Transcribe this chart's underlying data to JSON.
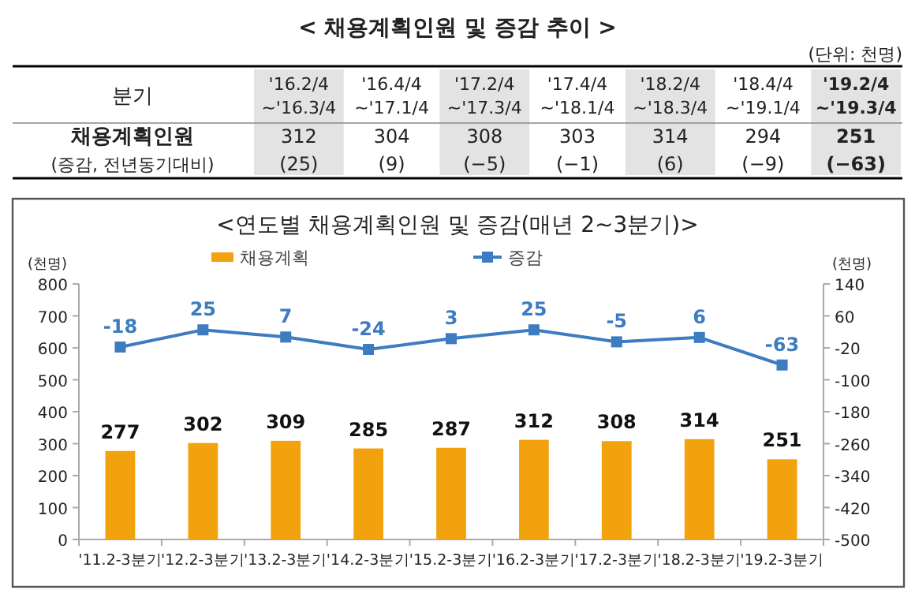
{
  "chart_data": [
    {
      "type": "other",
      "title": "< 채용계획인원 및 증감 추이 >",
      "annotations": [
        "(단위: 천명)"
      ],
      "xlabel": "분기",
      "data_labels": true,
      "categories": [
        "'16.2/4 ~'16.3/4",
        "'16.4/4 ~'17.1/4",
        "'17.2/4 ~'17.3/4",
        "'17.4/4 ~'18.1/4",
        "'18.2/4 ~'18.3/4",
        "'18.4/4 ~'19.1/4",
        "'19.2/4 ~'19.3/4"
      ],
      "series": [
        {
          "name": "채용계획인원",
          "values": [
            312,
            304,
            308,
            303,
            314,
            294,
            251
          ]
        },
        {
          "name": "(증감, 전년동기대비)",
          "values": [
            25,
            9,
            -5,
            -1,
            6,
            -9,
            -63
          ],
          "value_labels": [
            "(25)",
            "(9)",
            "(−5)",
            "(−1)",
            "(6)",
            "(−9)",
            "(−63)"
          ]
        }
      ]
    },
    {
      "type": "bar",
      "title": "<연도별 채용계획인원 및 증감(매년 2~3분기)>",
      "ylabel": "(천명)",
      "y2label": "(천명)",
      "categories": [
        "'11.2-3분기",
        "'12.2-3분기",
        "'13.2-3분기",
        "'14.2-3분기",
        "'15.2-3분기",
        "'16.2-3분기",
        "'17.2-3분기",
        "'18.2-3분기",
        "'19.2-3분기"
      ],
      "series": [
        {
          "name": "채용계획",
          "color": "#f2a20c",
          "values": [
            277,
            302,
            309,
            285,
            287,
            312,
            308,
            314,
            251
          ]
        },
        {
          "name": "증감",
          "type": "line",
          "axis": "y2",
          "color": "#3d7cc0",
          "marker": "square",
          "values": [
            -18,
            25,
            7,
            -24,
            3,
            25,
            -5,
            6,
            -63
          ]
        }
      ],
      "ylim": [
        0,
        800
      ],
      "yticks": [
        0,
        100,
        200,
        300,
        400,
        500,
        600,
        700,
        800
      ],
      "y2lim": [
        -500,
        140
      ],
      "y2ticks": [
        -500,
        -420,
        -340,
        -260,
        -180,
        -100,
        -20,
        60,
        140
      ],
      "data_labels": true,
      "legend": "top",
      "grid": false
    }
  ]
}
